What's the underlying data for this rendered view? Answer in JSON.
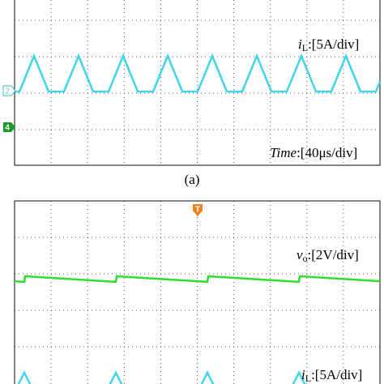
{
  "panel_a": {
    "markers": [
      "2",
      "4"
    ],
    "current_label": {
      "symbol": "i",
      "subscript": "L",
      "scale": ":[5A/div]"
    },
    "time_label": {
      "symbol": "Time",
      "scale": ":[40μs/div]"
    },
    "caption": "(a)"
  },
  "panel_b": {
    "trigger": "T",
    "voltage_label": {
      "symbol": "v",
      "subscript": "o",
      "scale": ":[2V/div]"
    },
    "current_label": {
      "symbol": "i",
      "subscript": "L",
      "scale": ":[5A/div]"
    }
  }
}
